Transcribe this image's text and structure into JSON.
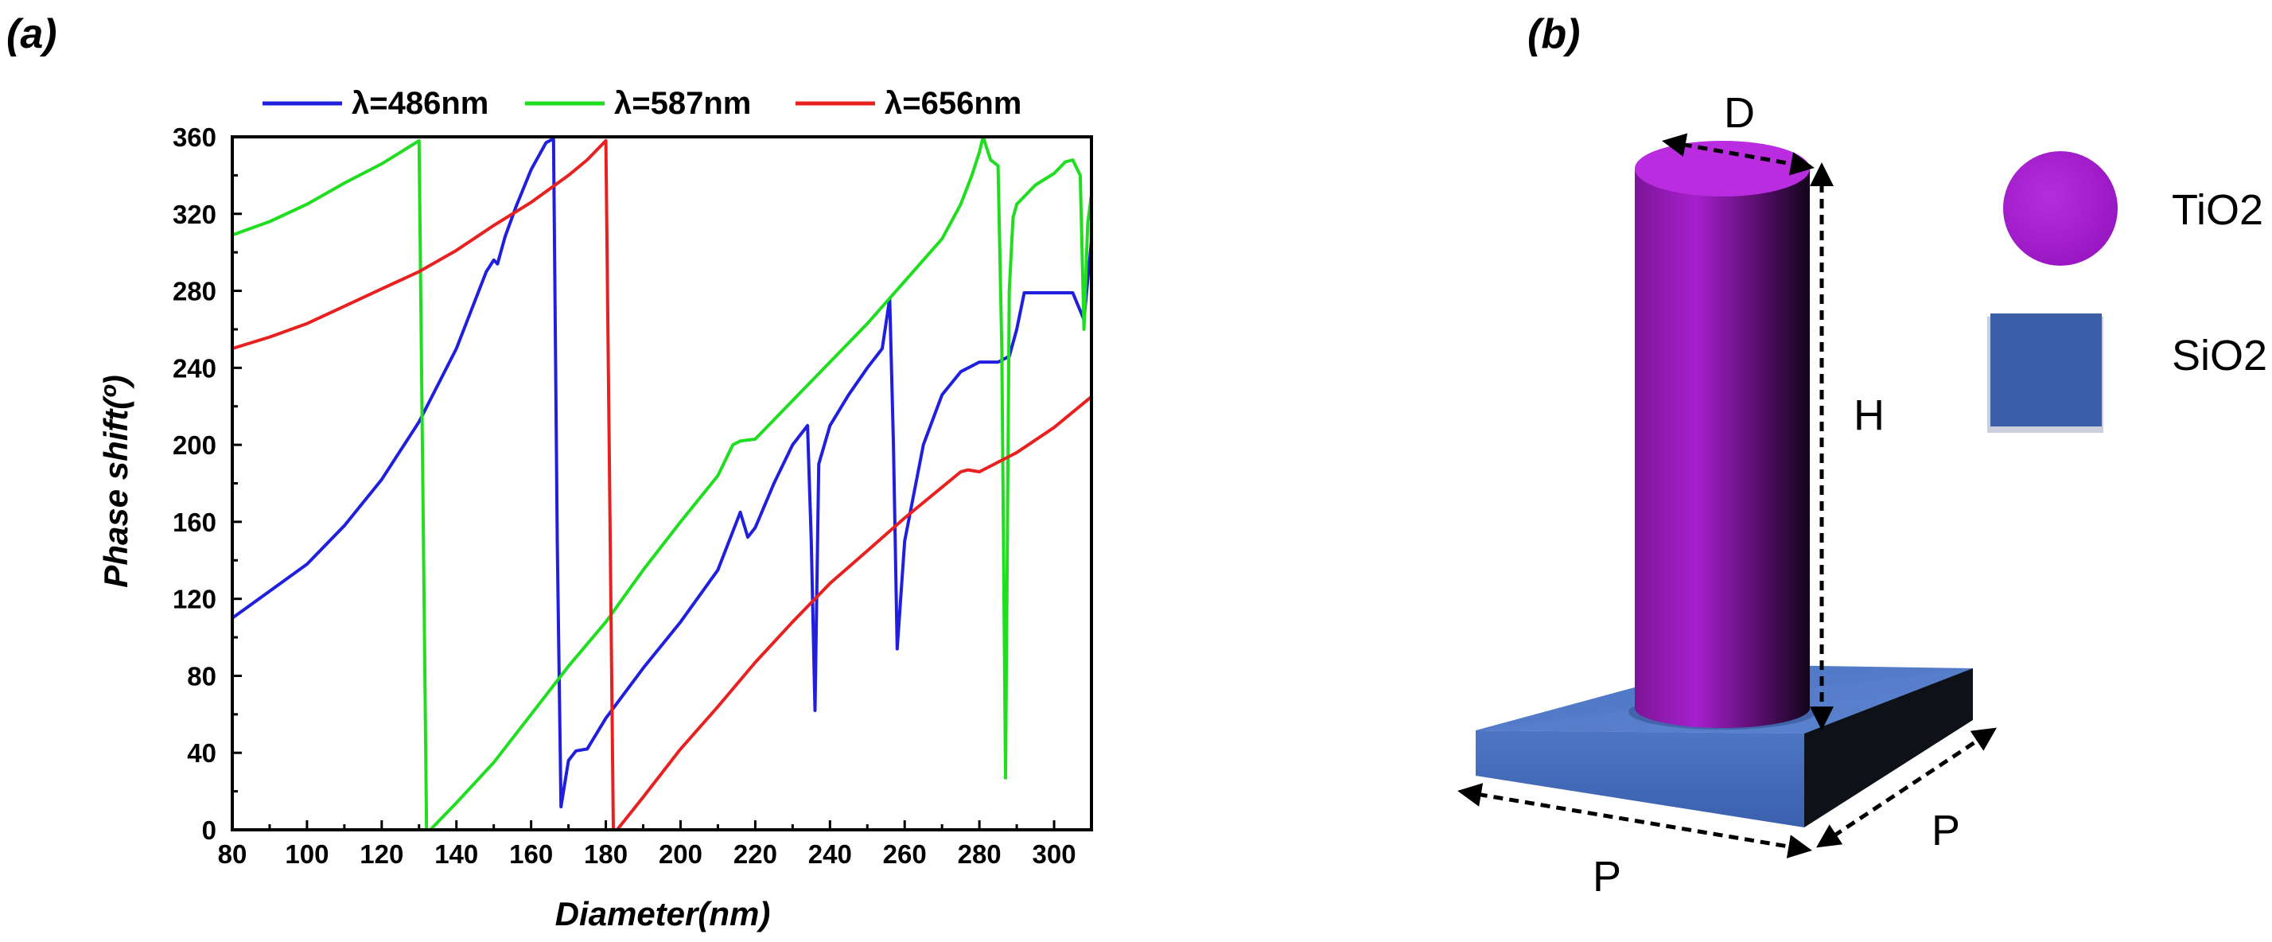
{
  "panel_a": {
    "label": "(a)"
  },
  "panel_b": {
    "label": "(b)",
    "dim_d": "D",
    "dim_h": "H",
    "dim_p_front": "P",
    "dim_p_side": "P",
    "materials": [
      {
        "name": "TiO2",
        "color": "#a01dc8"
      },
      {
        "name": "SiO2",
        "color": "#3a5fa8"
      }
    ]
  },
  "chart_data": {
    "type": "line",
    "title": "",
    "xlabel": "Diameter(nm)",
    "ylabel": "Phase shift(º)",
    "xlim": [
      80,
      310
    ],
    "ylim": [
      0,
      360
    ],
    "xticks": [
      80,
      100,
      120,
      140,
      160,
      180,
      200,
      220,
      240,
      260,
      280,
      300
    ],
    "yticks": [
      0,
      40,
      80,
      120,
      160,
      200,
      240,
      280,
      320,
      360
    ],
    "legend_position": "top",
    "series": [
      {
        "name": "λ=486nm",
        "color": "#1f1fdd",
        "x": [
          80,
          90,
          100,
          110,
          120,
          130,
          140,
          148,
          150,
          151,
          153,
          156,
          160,
          164,
          166,
          167,
          168,
          170,
          172,
          175,
          180,
          190,
          200,
          210,
          216,
          218,
          220,
          225,
          230,
          234,
          235,
          236,
          237,
          240,
          245,
          250,
          254,
          256,
          257,
          258,
          260,
          265,
          270,
          275,
          280,
          285,
          288,
          290,
          292,
          300,
          305,
          308,
          310
        ],
        "y": [
          110,
          124,
          138,
          158,
          182,
          212,
          250,
          290,
          296,
          294,
          308,
          324,
          343,
          357,
          359,
          150,
          12,
          36,
          41,
          42,
          58,
          84,
          108,
          135,
          165,
          152,
          157,
          180,
          200,
          210,
          150,
          62,
          190,
          210,
          226,
          240,
          250,
          276,
          200,
          94,
          150,
          200,
          226,
          238,
          243,
          243,
          246,
          260,
          279,
          279,
          279,
          265,
          306
        ]
      },
      {
        "name": "λ=587nm",
        "color": "#1fdd1f",
        "x": [
          80,
          90,
          100,
          110,
          120,
          125,
          130,
          131,
          132,
          133,
          140,
          150,
          160,
          170,
          180,
          190,
          200,
          210,
          214,
          216,
          220,
          230,
          240,
          250,
          260,
          270,
          275,
          278,
          280,
          281,
          283,
          285,
          286,
          287,
          288,
          289,
          290,
          295,
          300,
          303,
          305,
          307,
          308,
          309,
          310
        ],
        "y": [
          309,
          316,
          325,
          336,
          346,
          352,
          358,
          180,
          0,
          0,
          14,
          35,
          60,
          85,
          108,
          135,
          160,
          184,
          200,
          202,
          203,
          223,
          243,
          263,
          285,
          307,
          325,
          340,
          352,
          360,
          348,
          345,
          250,
          27,
          280,
          318,
          325,
          335,
          341,
          347,
          348,
          340,
          260,
          315,
          330
        ]
      },
      {
        "name": "λ=656nm",
        "color": "#e82020",
        "x": [
          80,
          90,
          100,
          110,
          120,
          130,
          140,
          150,
          160,
          170,
          175,
          180,
          181,
          182,
          183,
          190,
          200,
          210,
          220,
          230,
          240,
          250,
          260,
          270,
          275,
          277,
          280,
          290,
          300,
          310
        ],
        "y": [
          250,
          256,
          263,
          272,
          281,
          290,
          301,
          314,
          326,
          340,
          348,
          358,
          180,
          0,
          0,
          17,
          42,
          64,
          87,
          108,
          128,
          145,
          162,
          178,
          186,
          187,
          186,
          196,
          209,
          225
        ]
      }
    ]
  }
}
